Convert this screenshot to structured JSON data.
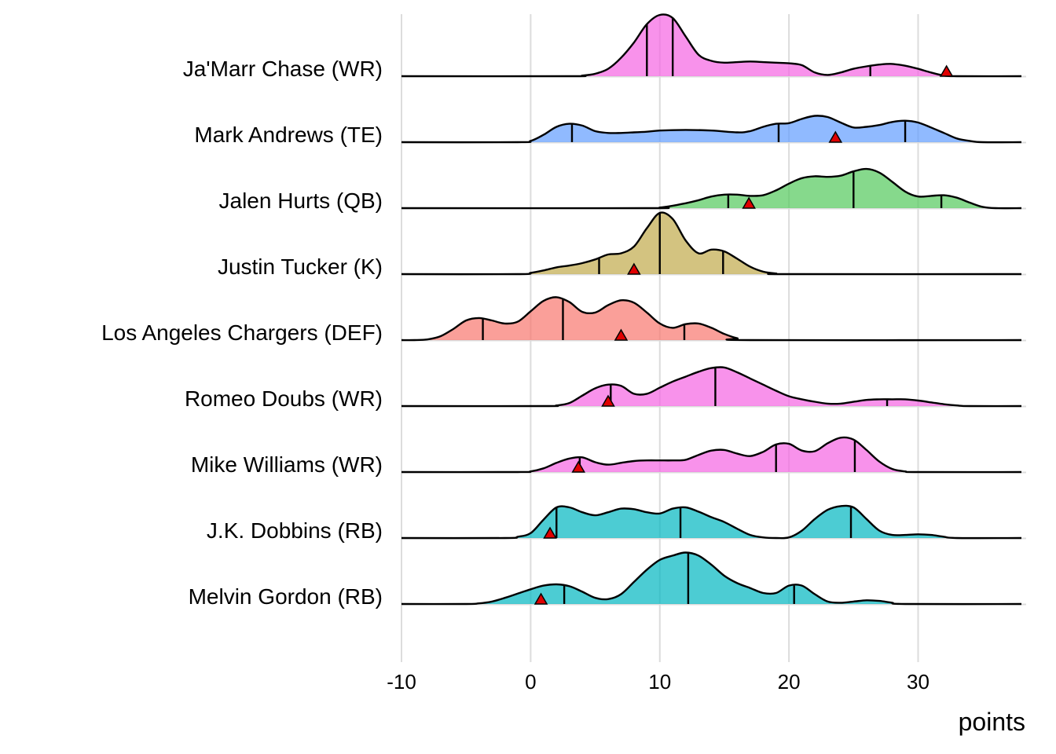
{
  "chart_data": {
    "type": "ridgeline",
    "title": "",
    "xlabel": "points",
    "ylabel": "",
    "xlim": [
      -10,
      38
    ],
    "x_ticks": [
      -10,
      0,
      10,
      20,
      30
    ],
    "x_tick_labels": [
      "-10",
      "0",
      "10",
      "20",
      "30"
    ],
    "grid": "vertical",
    "series": [
      {
        "name": "Ja'Marr Chase (WR)",
        "color": "#F564E3",
        "points": [
          [
            -10,
            0
          ],
          [
            3,
            0
          ],
          [
            4,
            0.01
          ],
          [
            5,
            0.04
          ],
          [
            6,
            0.12
          ],
          [
            7,
            0.3
          ],
          [
            8,
            0.55
          ],
          [
            9,
            0.85
          ],
          [
            10,
            1.0
          ],
          [
            11,
            0.95
          ],
          [
            12,
            0.65
          ],
          [
            13,
            0.35
          ],
          [
            14,
            0.25
          ],
          [
            15,
            0.22
          ],
          [
            16,
            0.23
          ],
          [
            17,
            0.24
          ],
          [
            18,
            0.23
          ],
          [
            19,
            0.22
          ],
          [
            20,
            0.21
          ],
          [
            21,
            0.18
          ],
          [
            22,
            0.06
          ],
          [
            23,
            0.02
          ],
          [
            24,
            0.06
          ],
          [
            25,
            0.12
          ],
          [
            26,
            0.16
          ],
          [
            27,
            0.19
          ],
          [
            28,
            0.2
          ],
          [
            29,
            0.17
          ],
          [
            30,
            0.12
          ],
          [
            31,
            0.06
          ],
          [
            32,
            0.01
          ],
          [
            33,
            0
          ],
          [
            38,
            0
          ]
        ],
        "quartiles": [
          9,
          11,
          26.3
        ],
        "actual": 32.2
      },
      {
        "name": "Mark Andrews (TE)",
        "color": "#619CFF",
        "points": [
          [
            -10,
            0
          ],
          [
            -1,
            0
          ],
          [
            0,
            0.02
          ],
          [
            1,
            0.12
          ],
          [
            2,
            0.25
          ],
          [
            3,
            0.3
          ],
          [
            4,
            0.27
          ],
          [
            5,
            0.18
          ],
          [
            6,
            0.15
          ],
          [
            7,
            0.15
          ],
          [
            8,
            0.16
          ],
          [
            9,
            0.17
          ],
          [
            10,
            0.19
          ],
          [
            12,
            0.2
          ],
          [
            14,
            0.19
          ],
          [
            16,
            0.16
          ],
          [
            17,
            0.18
          ],
          [
            18,
            0.25
          ],
          [
            19,
            0.3
          ],
          [
            20,
            0.31
          ],
          [
            21,
            0.38
          ],
          [
            22,
            0.43
          ],
          [
            23,
            0.41
          ],
          [
            24,
            0.32
          ],
          [
            25,
            0.24
          ],
          [
            26,
            0.25
          ],
          [
            27,
            0.28
          ],
          [
            28,
            0.33
          ],
          [
            29,
            0.35
          ],
          [
            30,
            0.32
          ],
          [
            31,
            0.24
          ],
          [
            32,
            0.15
          ],
          [
            33,
            0.06
          ],
          [
            34,
            0.02
          ],
          [
            35,
            0
          ],
          [
            38,
            0
          ]
        ],
        "quartiles": [
          3.2,
          19.2,
          29
        ],
        "actual": 23.6
      },
      {
        "name": "Jalen Hurts (QB)",
        "color": "#53C95B",
        "points": [
          [
            -10,
            0
          ],
          [
            9,
            0
          ],
          [
            10,
            0.01
          ],
          [
            11,
            0.04
          ],
          [
            12,
            0.08
          ],
          [
            13,
            0.13
          ],
          [
            14,
            0.19
          ],
          [
            15,
            0.22
          ],
          [
            16,
            0.22
          ],
          [
            17,
            0.2
          ],
          [
            18,
            0.21
          ],
          [
            19,
            0.29
          ],
          [
            20,
            0.4
          ],
          [
            21,
            0.49
          ],
          [
            22,
            0.52
          ],
          [
            23,
            0.51
          ],
          [
            24,
            0.53
          ],
          [
            25,
            0.6
          ],
          [
            26,
            0.64
          ],
          [
            27,
            0.58
          ],
          [
            28,
            0.43
          ],
          [
            29,
            0.27
          ],
          [
            30,
            0.19
          ],
          [
            31,
            0.2
          ],
          [
            32,
            0.21
          ],
          [
            33,
            0.17
          ],
          [
            34,
            0.09
          ],
          [
            35,
            0.02
          ],
          [
            36,
            0
          ],
          [
            38,
            0
          ]
        ],
        "quartiles": [
          15.3,
          25,
          31.8
        ],
        "actual": 16.9
      },
      {
        "name": "Justin Tucker (K)",
        "color": "#C1A94A",
        "points": [
          [
            -10,
            0
          ],
          [
            -1,
            0
          ],
          [
            0,
            0.02
          ],
          [
            1,
            0.06
          ],
          [
            2,
            0.11
          ],
          [
            3,
            0.14
          ],
          [
            4,
            0.18
          ],
          [
            5,
            0.24
          ],
          [
            6,
            0.32
          ],
          [
            7,
            0.34
          ],
          [
            8,
            0.45
          ],
          [
            9,
            0.75
          ],
          [
            10,
            1.0
          ],
          [
            11,
            0.9
          ],
          [
            12,
            0.55
          ],
          [
            13,
            0.34
          ],
          [
            14,
            0.4
          ],
          [
            15,
            0.37
          ],
          [
            16,
            0.25
          ],
          [
            17,
            0.12
          ],
          [
            18,
            0.04
          ],
          [
            19,
            0.01
          ],
          [
            20,
            0
          ],
          [
            38,
            0
          ]
        ],
        "quartiles": [
          5.3,
          10,
          14.9
        ],
        "actual": 8
      },
      {
        "name": "Los Angeles Chargers (DEF)",
        "color": "#F8766D",
        "points": [
          [
            -10,
            0
          ],
          [
            -9,
            0
          ],
          [
            -8,
            0.01
          ],
          [
            -7,
            0.06
          ],
          [
            -6,
            0.18
          ],
          [
            -5,
            0.32
          ],
          [
            -4,
            0.36
          ],
          [
            -3,
            0.32
          ],
          [
            -2,
            0.27
          ],
          [
            -1,
            0.3
          ],
          [
            0,
            0.47
          ],
          [
            1,
            0.64
          ],
          [
            2,
            0.7
          ],
          [
            3,
            0.62
          ],
          [
            4,
            0.46
          ],
          [
            5,
            0.45
          ],
          [
            6,
            0.57
          ],
          [
            7,
            0.65
          ],
          [
            8,
            0.61
          ],
          [
            9,
            0.45
          ],
          [
            10,
            0.27
          ],
          [
            11,
            0.2
          ],
          [
            12,
            0.26
          ],
          [
            13,
            0.27
          ],
          [
            14,
            0.2
          ],
          [
            15,
            0.1
          ],
          [
            16,
            0.03
          ],
          [
            17,
            0
          ],
          [
            38,
            0
          ]
        ],
        "quartiles": [
          -3.7,
          2.5,
          11.9
        ],
        "actual": 7
      },
      {
        "name": "Romeo Doubs (WR)",
        "color": "#F564E3",
        "points": [
          [
            -10,
            0
          ],
          [
            1,
            0
          ],
          [
            2,
            0.01
          ],
          [
            3,
            0.05
          ],
          [
            4,
            0.17
          ],
          [
            5,
            0.29
          ],
          [
            6,
            0.35
          ],
          [
            7,
            0.33
          ],
          [
            8,
            0.2
          ],
          [
            9,
            0.2
          ],
          [
            10,
            0.3
          ],
          [
            11,
            0.4
          ],
          [
            12,
            0.48
          ],
          [
            13,
            0.56
          ],
          [
            14,
            0.62
          ],
          [
            15,
            0.63
          ],
          [
            16,
            0.55
          ],
          [
            17,
            0.45
          ],
          [
            18,
            0.35
          ],
          [
            19,
            0.25
          ],
          [
            20,
            0.16
          ],
          [
            21,
            0.11
          ],
          [
            22,
            0.07
          ],
          [
            23,
            0.04
          ],
          [
            24,
            0.04
          ],
          [
            25,
            0.07
          ],
          [
            26,
            0.1
          ],
          [
            27,
            0.11
          ],
          [
            28,
            0.11
          ],
          [
            29,
            0.11
          ],
          [
            30,
            0.09
          ],
          [
            31,
            0.06
          ],
          [
            32,
            0.03
          ],
          [
            33,
            0.01
          ],
          [
            34,
            0
          ],
          [
            38,
            0
          ]
        ],
        "quartiles": [
          6.2,
          14.3,
          27.6
        ],
        "actual": 6
      },
      {
        "name": "Mike Williams (WR)",
        "color": "#F564E3",
        "points": [
          [
            -10,
            0
          ],
          [
            -1,
            0
          ],
          [
            0,
            0.01
          ],
          [
            1,
            0.06
          ],
          [
            2,
            0.15
          ],
          [
            3,
            0.22
          ],
          [
            4,
            0.24
          ],
          [
            5,
            0.16
          ],
          [
            6,
            0.12
          ],
          [
            7,
            0.15
          ],
          [
            8,
            0.18
          ],
          [
            9,
            0.19
          ],
          [
            10,
            0.19
          ],
          [
            11,
            0.19
          ],
          [
            12,
            0.2
          ],
          [
            13,
            0.28
          ],
          [
            14,
            0.35
          ],
          [
            15,
            0.36
          ],
          [
            16,
            0.3
          ],
          [
            17,
            0.26
          ],
          [
            18,
            0.33
          ],
          [
            19,
            0.45
          ],
          [
            20,
            0.46
          ],
          [
            21,
            0.35
          ],
          [
            22,
            0.34
          ],
          [
            23,
            0.47
          ],
          [
            24,
            0.56
          ],
          [
            25,
            0.53
          ],
          [
            26,
            0.36
          ],
          [
            27,
            0.17
          ],
          [
            28,
            0.05
          ],
          [
            29,
            0.01
          ],
          [
            30,
            0
          ],
          [
            38,
            0
          ]
        ],
        "quartiles": [
          3.8,
          19,
          25.1
        ],
        "actual": 3.7
      },
      {
        "name": "J.K. Dobbins (RB)",
        "color": "#00B6C1",
        "points": [
          [
            -10,
            0
          ],
          [
            -2,
            0
          ],
          [
            -1,
            0.02
          ],
          [
            0,
            0.08
          ],
          [
            1,
            0.3
          ],
          [
            2,
            0.5
          ],
          [
            3,
            0.5
          ],
          [
            4,
            0.42
          ],
          [
            5,
            0.37
          ],
          [
            6,
            0.42
          ],
          [
            7,
            0.48
          ],
          [
            8,
            0.47
          ],
          [
            9,
            0.42
          ],
          [
            10,
            0.4
          ],
          [
            11,
            0.48
          ],
          [
            12,
            0.5
          ],
          [
            13,
            0.43
          ],
          [
            14,
            0.34
          ],
          [
            15,
            0.26
          ],
          [
            16,
            0.15
          ],
          [
            17,
            0.05
          ],
          [
            18,
            0.01
          ],
          [
            19,
            0
          ],
          [
            20,
            0.01
          ],
          [
            21,
            0.12
          ],
          [
            22,
            0.31
          ],
          [
            23,
            0.46
          ],
          [
            24,
            0.52
          ],
          [
            25,
            0.5
          ],
          [
            26,
            0.31
          ],
          [
            27,
            0.12
          ],
          [
            28,
            0.05
          ],
          [
            29,
            0.05
          ],
          [
            30,
            0.06
          ],
          [
            31,
            0.05
          ],
          [
            32,
            0.02
          ],
          [
            33,
            0
          ],
          [
            38,
            0
          ]
        ],
        "quartiles": [
          2,
          11.6,
          24.8
        ],
        "actual": 1.5
      },
      {
        "name": "Melvin Gordon (RB)",
        "color": "#00B6C1",
        "points": [
          [
            -10,
            0
          ],
          [
            -5,
            0
          ],
          [
            -4,
            0.01
          ],
          [
            -3,
            0.04
          ],
          [
            -2,
            0.1
          ],
          [
            -1,
            0.17
          ],
          [
            0,
            0.24
          ],
          [
            1,
            0.3
          ],
          [
            2,
            0.32
          ],
          [
            3,
            0.29
          ],
          [
            4,
            0.2
          ],
          [
            5,
            0.1
          ],
          [
            6,
            0.08
          ],
          [
            7,
            0.16
          ],
          [
            8,
            0.36
          ],
          [
            9,
            0.56
          ],
          [
            10,
            0.72
          ],
          [
            11,
            0.79
          ],
          [
            12,
            0.84
          ],
          [
            13,
            0.79
          ],
          [
            14,
            0.64
          ],
          [
            15,
            0.46
          ],
          [
            16,
            0.34
          ],
          [
            17,
            0.26
          ],
          [
            18,
            0.18
          ],
          [
            19,
            0.18
          ],
          [
            20,
            0.3
          ],
          [
            21,
            0.3
          ],
          [
            22,
            0.16
          ],
          [
            23,
            0.04
          ],
          [
            24,
            0.02
          ],
          [
            25,
            0.04
          ],
          [
            26,
            0.06
          ],
          [
            27,
            0.05
          ],
          [
            28,
            0.02
          ],
          [
            29,
            0
          ],
          [
            38,
            0
          ]
        ],
        "quartiles": [
          2.6,
          12.2,
          20.4
        ],
        "actual": 0.8
      }
    ]
  }
}
